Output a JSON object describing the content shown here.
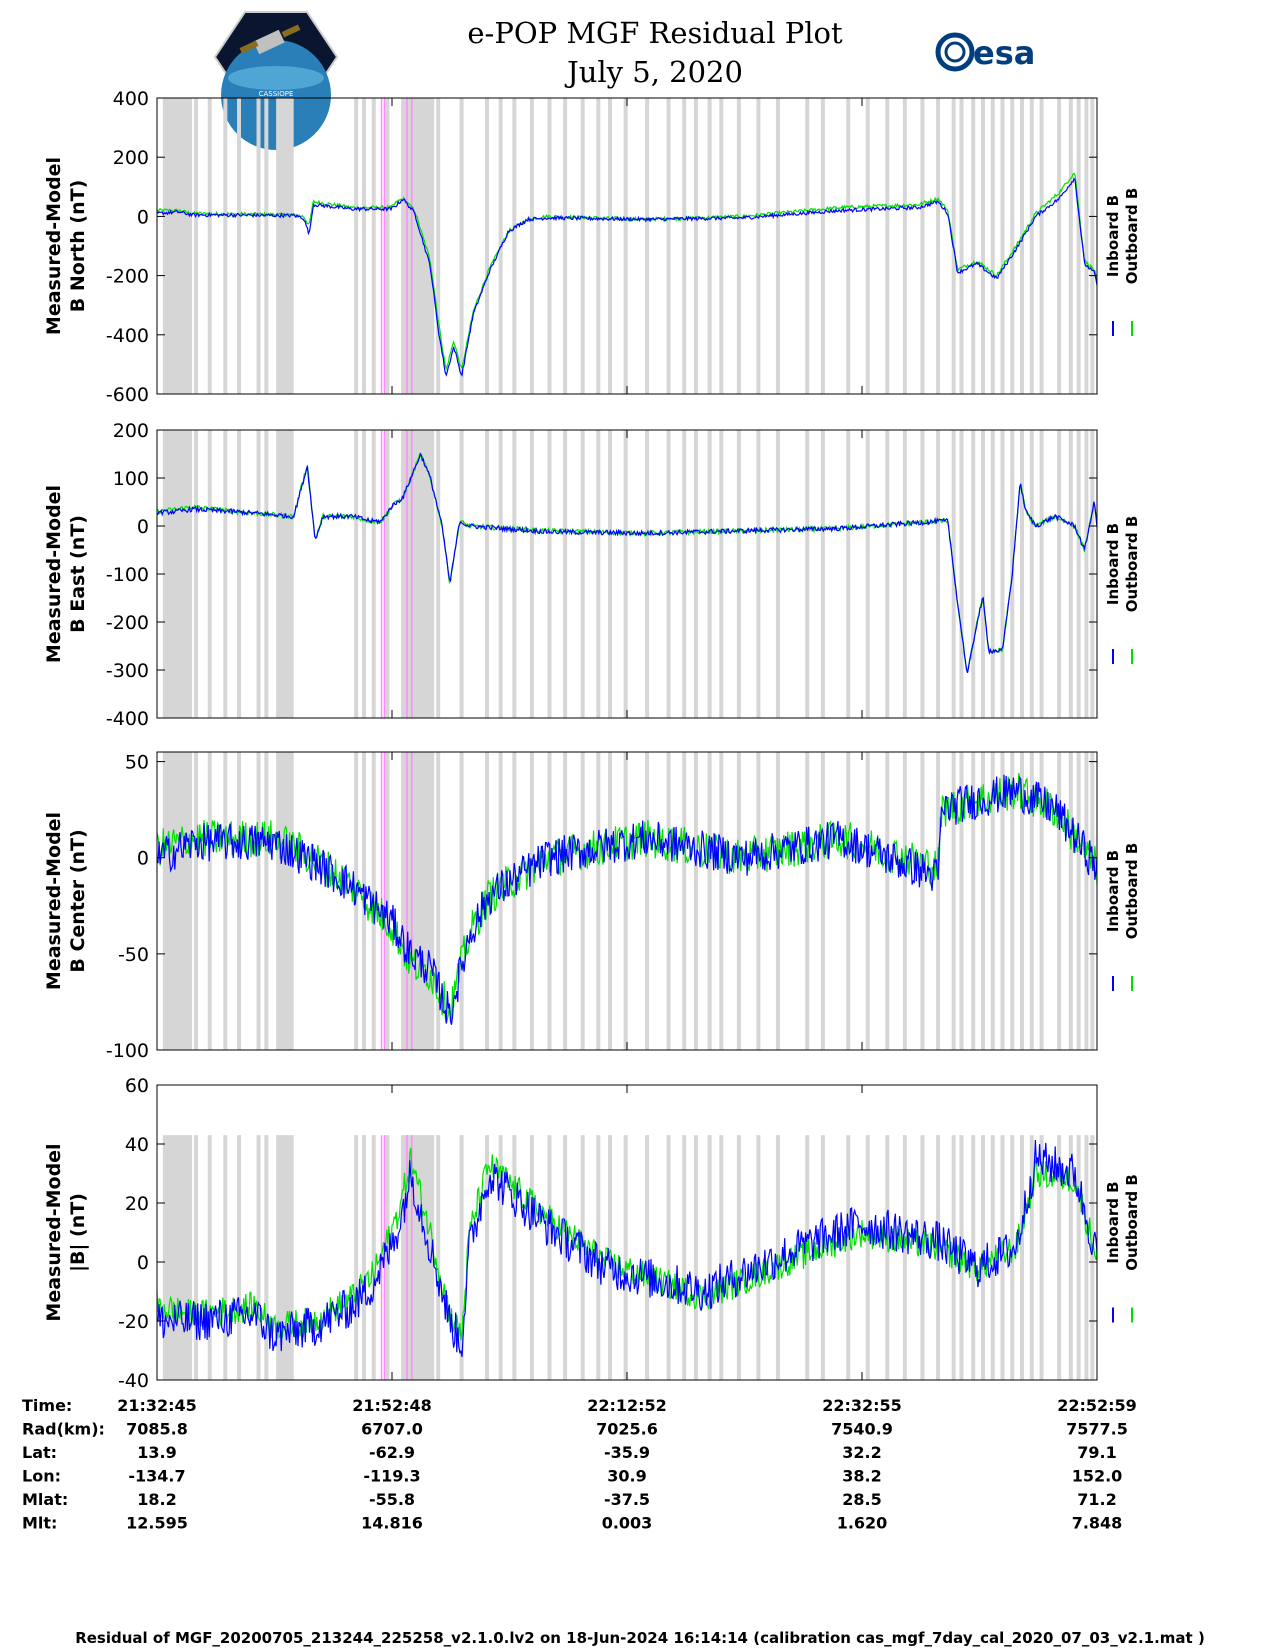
{
  "title": {
    "line1": "e-POP MGF Residual Plot",
    "line2": "July 5, 2020"
  },
  "logos": {
    "left_name": "cassiope-mission-logo",
    "right_text": "esa"
  },
  "colors": {
    "inboard": "#0000ff",
    "outboard": "#00e000",
    "gray_band": "#d6d6d6",
    "pink_line": "#ff88ff"
  },
  "legend": {
    "inboard": "Inboard B",
    "outboard": "Outboard B"
  },
  "chart_data": {
    "type": "line",
    "x_time_ticks": [
      "21:32:45",
      "21:52:48",
      "22:12:52",
      "22:32:55",
      "22:52:59"
    ],
    "x_range_seconds": [
      0,
      4814
    ],
    "gray_bands_seconds": [
      [
        30,
        180
      ],
      [
        610,
        700
      ],
      [
        1250,
        1420
      ]
    ],
    "gray_lines_seconds": [
      200,
      270,
      350,
      420,
      520,
      560,
      1020,
      1060,
      1110,
      1180,
      1440,
      1560,
      1690,
      1760,
      1830,
      1920,
      2010,
      2090,
      2180,
      2260,
      2320,
      2400,
      2510,
      2620,
      2700,
      2760,
      2830,
      2890,
      2980,
      3080,
      3180,
      3330,
      3410,
      3540,
      3640,
      3740,
      3830,
      3920,
      4000,
      4080,
      4120,
      4180,
      4230,
      4280,
      4330,
      4380,
      4430,
      4480,
      4530,
      4620,
      4680,
      4720,
      4760,
      4790
    ],
    "pink_lines_seconds": [
      1150,
      1165,
      1280,
      1305
    ],
    "panels": [
      {
        "name": "north",
        "ylabel": [
          "Measured-Model",
          "B North (nT)"
        ],
        "ylim": [
          -600,
          400
        ],
        "yticks": [
          -600,
          -400,
          -200,
          0,
          200,
          400
        ],
        "series": [
          {
            "name": "Outboard B",
            "noise": 6,
            "x": [
              0,
              110,
              180,
              700,
              750,
              780,
              800,
              1000,
              1200,
              1230,
              1260,
              1320,
              1400,
              1440,
              1480,
              1520,
              1560,
              1620,
              1700,
              1800,
              1900,
              2000,
              2500,
              3000,
              3500,
              3900,
              4000,
              4050,
              4100,
              4200,
              4300,
              4400,
              4500,
              4620,
              4700,
              4750,
              4800,
              4814
            ],
            "y": [
              20,
              20,
              10,
              5,
              0,
              -30,
              50,
              30,
              30,
              50,
              60,
              20,
              -150,
              -350,
              -520,
              -420,
              -520,
              -320,
              -180,
              -50,
              -10,
              0,
              -10,
              0,
              30,
              40,
              60,
              20,
              -180,
              -150,
              -200,
              -100,
              10,
              80,
              150,
              -150,
              -180,
              -220
            ]
          },
          {
            "name": "Inboard B",
            "noise": 6,
            "x": [
              0,
              110,
              180,
              700,
              750,
              780,
              800,
              1000,
              1200,
              1230,
              1260,
              1320,
              1400,
              1440,
              1480,
              1520,
              1560,
              1620,
              1700,
              1800,
              1900,
              2000,
              2500,
              3000,
              3500,
              3900,
              4000,
              4050,
              4100,
              4200,
              4300,
              4400,
              4500,
              4620,
              4700,
              4750,
              4800,
              4814
            ],
            "y": [
              10,
              15,
              5,
              3,
              -5,
              -60,
              40,
              25,
              25,
              40,
              60,
              10,
              -170,
              -380,
              -540,
              -440,
              -540,
              -330,
              -190,
              -50,
              -10,
              -5,
              -10,
              -5,
              20,
              30,
              50,
              10,
              -190,
              -160,
              -210,
              -110,
              0,
              60,
              130,
              -160,
              -190,
              -230
            ]
          }
        ]
      },
      {
        "name": "east",
        "ylabel": [
          "Measured-Model",
          "B East (nT)"
        ],
        "ylim": [
          -400,
          200
        ],
        "yticks": [
          -400,
          -300,
          -200,
          -100,
          0,
          100,
          200
        ],
        "series": [
          {
            "name": "Outboard B",
            "noise": 5,
            "x": [
              0,
              100,
              180,
              400,
              700,
              770,
              810,
              850,
              900,
              1000,
              1100,
              1150,
              1200,
              1260,
              1300,
              1350,
              1400,
              1430,
              1460,
              1500,
              1550,
              1600,
              2000,
              2500,
              3000,
              3500,
              4000,
              4050,
              4100,
              4150,
              4200,
              4230,
              4260,
              4330,
              4380,
              4420,
              4450,
              4500,
              4600,
              4700,
              4750,
              4800,
              4814
            ],
            "y": [
              30,
              35,
              40,
              30,
              20,
              130,
              -30,
              20,
              20,
              20,
              10,
              10,
              40,
              60,
              100,
              150,
              100,
              50,
              0,
              -120,
              10,
              0,
              -10,
              -15,
              -10,
              -5,
              10,
              10,
              -160,
              -310,
              -200,
              -150,
              -260,
              -260,
              -100,
              90,
              30,
              0,
              20,
              0,
              -50,
              50,
              0
            ]
          },
          {
            "name": "Inboard B",
            "noise": 5,
            "x": [
              0,
              100,
              180,
              400,
              700,
              770,
              810,
              850,
              900,
              1000,
              1100,
              1150,
              1200,
              1260,
              1300,
              1350,
              1400,
              1430,
              1460,
              1500,
              1550,
              1600,
              2000,
              2500,
              3000,
              3500,
              4000,
              4050,
              4100,
              4150,
              4200,
              4230,
              4260,
              4330,
              4380,
              4420,
              4450,
              4500,
              4600,
              4700,
              4750,
              4800,
              4814
            ],
            "y": [
              28,
              30,
              35,
              30,
              20,
              125,
              -30,
              20,
              20,
              20,
              10,
              10,
              40,
              60,
              100,
              150,
              100,
              50,
              0,
              -120,
              10,
              0,
              -12,
              -15,
              -10,
              -5,
              10,
              10,
              -160,
              -310,
              -200,
              -150,
              -260,
              -260,
              -100,
              90,
              30,
              0,
              20,
              0,
              -50,
              50,
              0
            ]
          }
        ]
      },
      {
        "name": "center",
        "ylabel": [
          "Measured-Model",
          "B Center (nT)"
        ],
        "ylim": [
          -100,
          55
        ],
        "yticks": [
          -100,
          -50,
          0,
          50
        ],
        "series": [
          {
            "name": "Outboard B",
            "noise": 10,
            "x": [
              0,
              200,
              600,
              800,
              1000,
              1200,
              1300,
              1400,
              1500,
              1560,
              1600,
              1700,
              2000,
              2500,
              3000,
              3500,
              4000,
              4020,
              4200,
              4400,
              4500,
              4600,
              4814
            ],
            "y": [
              5,
              10,
              10,
              0,
              -15,
              -35,
              -55,
              -60,
              -80,
              -55,
              -40,
              -20,
              0,
              10,
              0,
              10,
              -5,
              25,
              30,
              35,
              30,
              25,
              -5
            ]
          },
          {
            "name": "Inboard B",
            "noise": 10,
            "x": [
              0,
              200,
              600,
              800,
              1000,
              1200,
              1300,
              1400,
              1500,
              1560,
              1600,
              1700,
              2000,
              2500,
              3000,
              3500,
              4000,
              4020,
              4200,
              4400,
              4500,
              4600,
              4814
            ],
            "y": [
              0,
              8,
              8,
              -2,
              -15,
              -33,
              -50,
              -58,
              -82,
              -57,
              -40,
              -20,
              0,
              10,
              0,
              10,
              -10,
              25,
              30,
              35,
              30,
              25,
              -5
            ]
          }
        ]
      },
      {
        "name": "magnitude",
        "ylabel": [
          "Measured-Model",
          "|B| (nT)"
        ],
        "ylim": [
          -40,
          60
        ],
        "yticks": [
          -40,
          -20,
          0,
          20,
          40,
          60
        ],
        "series": [
          {
            "name": "Outboard B",
            "noise": 5,
            "x": [
              0,
              200,
              500,
              600,
              800,
              1000,
              1100,
              1200,
              1250,
              1300,
              1400,
              1500,
              1560,
              1600,
              1700,
              2000,
              2300,
              2800,
              3300,
              3600,
              4000,
              4200,
              4400,
              4500,
              4700,
              4814
            ],
            "y": [
              -15,
              -18,
              -15,
              -22,
              -20,
              -12,
              -5,
              10,
              20,
              35,
              10,
              -18,
              -25,
              10,
              33,
              15,
              0,
              -12,
              2,
              10,
              5,
              -2,
              5,
              30,
              28,
              2
            ]
          },
          {
            "name": "Inboard B",
            "noise": 7,
            "x": [
              0,
              200,
              500,
              600,
              800,
              1000,
              1100,
              1200,
              1250,
              1300,
              1400,
              1500,
              1560,
              1600,
              1700,
              2000,
              2300,
              2800,
              3300,
              3600,
              4000,
              4200,
              4400,
              4500,
              4700,
              4814
            ],
            "y": [
              -20,
              -20,
              -18,
              -25,
              -22,
              -15,
              -8,
              5,
              15,
              30,
              5,
              -20,
              -28,
              5,
              30,
              12,
              -2,
              -10,
              5,
              13,
              7,
              -2,
              5,
              35,
              30,
              2
            ]
          }
        ]
      }
    ]
  },
  "ephemeris": {
    "labels": [
      "Time:",
      "Rad(km):",
      "Lat:",
      "Lon:",
      "Mlat:",
      "Mlt:"
    ],
    "columns": [
      [
        "21:32:45",
        "7085.8",
        "13.9",
        "-134.7",
        "18.2",
        "12.595"
      ],
      [
        "21:52:48",
        "6707.0",
        "-62.9",
        "-119.3",
        "-55.8",
        "14.816"
      ],
      [
        "22:12:52",
        "7025.6",
        "-35.9",
        "30.9",
        "-37.5",
        "0.003"
      ],
      [
        "22:32:55",
        "7540.9",
        "32.2",
        "38.2",
        "28.5",
        "1.620"
      ],
      [
        "22:52:59",
        "7577.5",
        "79.1",
        "152.0",
        "71.2",
        "7.848"
      ]
    ]
  },
  "footer": "Residual of MGF_20200705_213244_225258_v2.1.0.lv2 on 18-Jun-2024 16:14:14 (calibration cas_mgf_7day_cal_2020_07_03_v2.1.mat )"
}
